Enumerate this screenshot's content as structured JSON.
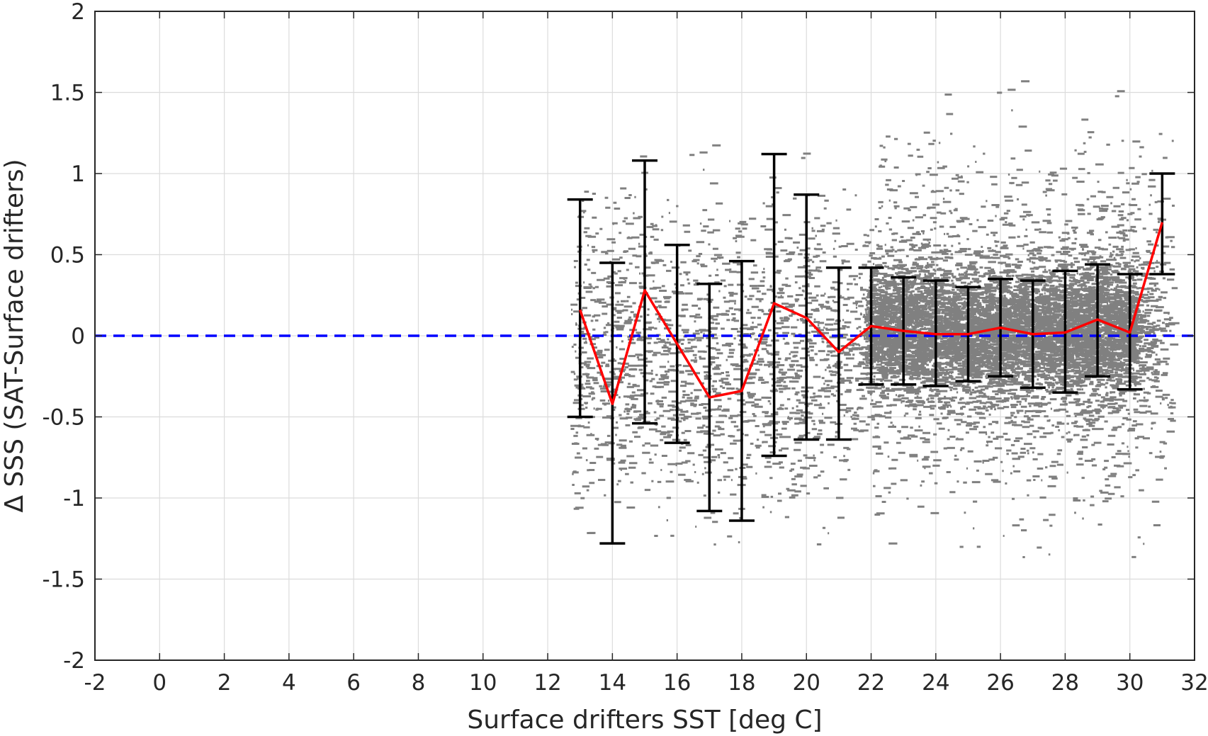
{
  "chart_data": {
    "type": "scatter",
    "xlabel": "Surface drifters SST [deg C]",
    "ylabel": "Δ SSS (SAT-Surface drifters)",
    "xlim": [
      -2,
      32
    ],
    "ylim": [
      -2,
      2
    ],
    "x_ticks": [
      "-2",
      "0",
      "2",
      "4",
      "6",
      "8",
      "10",
      "12",
      "14",
      "16",
      "18",
      "20",
      "22",
      "24",
      "26",
      "28",
      "30",
      "32"
    ],
    "y_ticks": [
      "2",
      "1.5",
      "1",
      "0.5",
      "0",
      "-0.5",
      "-1",
      "-1.5",
      "-2"
    ],
    "grid": true,
    "colors": {
      "points": "#808080",
      "mean_line": "#ff0000",
      "error_bars": "#000000",
      "zero_line": "#0000ff"
    },
    "zero_line_y": 0,
    "binned_stats": {
      "x": [
        13,
        14,
        15,
        16,
        17,
        18,
        19,
        20,
        21,
        22,
        23,
        24,
        25,
        26,
        27,
        28,
        29,
        30,
        31
      ],
      "mean": [
        0.16,
        -0.42,
        0.28,
        -0.05,
        -0.38,
        -0.34,
        0.2,
        0.11,
        -0.1,
        0.06,
        0.03,
        0.01,
        0.01,
        0.05,
        0.01,
        0.02,
        0.1,
        0.02,
        0.7
      ],
      "upper": [
        0.84,
        0.45,
        1.08,
        0.56,
        0.32,
        0.46,
        1.12,
        0.87,
        0.42,
        0.42,
        0.36,
        0.34,
        0.3,
        0.35,
        0.34,
        0.4,
        0.44,
        0.38,
        1.0
      ],
      "lower": [
        -0.5,
        -1.28,
        -0.54,
        -0.66,
        -1.08,
        -1.14,
        -0.74,
        -0.64,
        -0.64,
        -0.3,
        -0.3,
        -0.31,
        -0.28,
        -0.25,
        -0.32,
        -0.35,
        -0.25,
        -0.33,
        0.38
      ]
    },
    "scatter_clusters": [
      {
        "x": [
          21.8,
          30.2
        ],
        "y": [
          -0.45,
          0.55
        ],
        "density": 1.0
      },
      {
        "x": [
          21.5,
          30.8
        ],
        "y": [
          -0.8,
          0.85
        ],
        "density": 0.45
      },
      {
        "x": [
          12.7,
          21.5
        ],
        "y": [
          -1.4,
          1.2
        ],
        "density": 0.06
      },
      {
        "x": [
          22,
          31.3
        ],
        "y": [
          -1.5,
          1.6
        ],
        "density": 0.05
      }
    ]
  }
}
